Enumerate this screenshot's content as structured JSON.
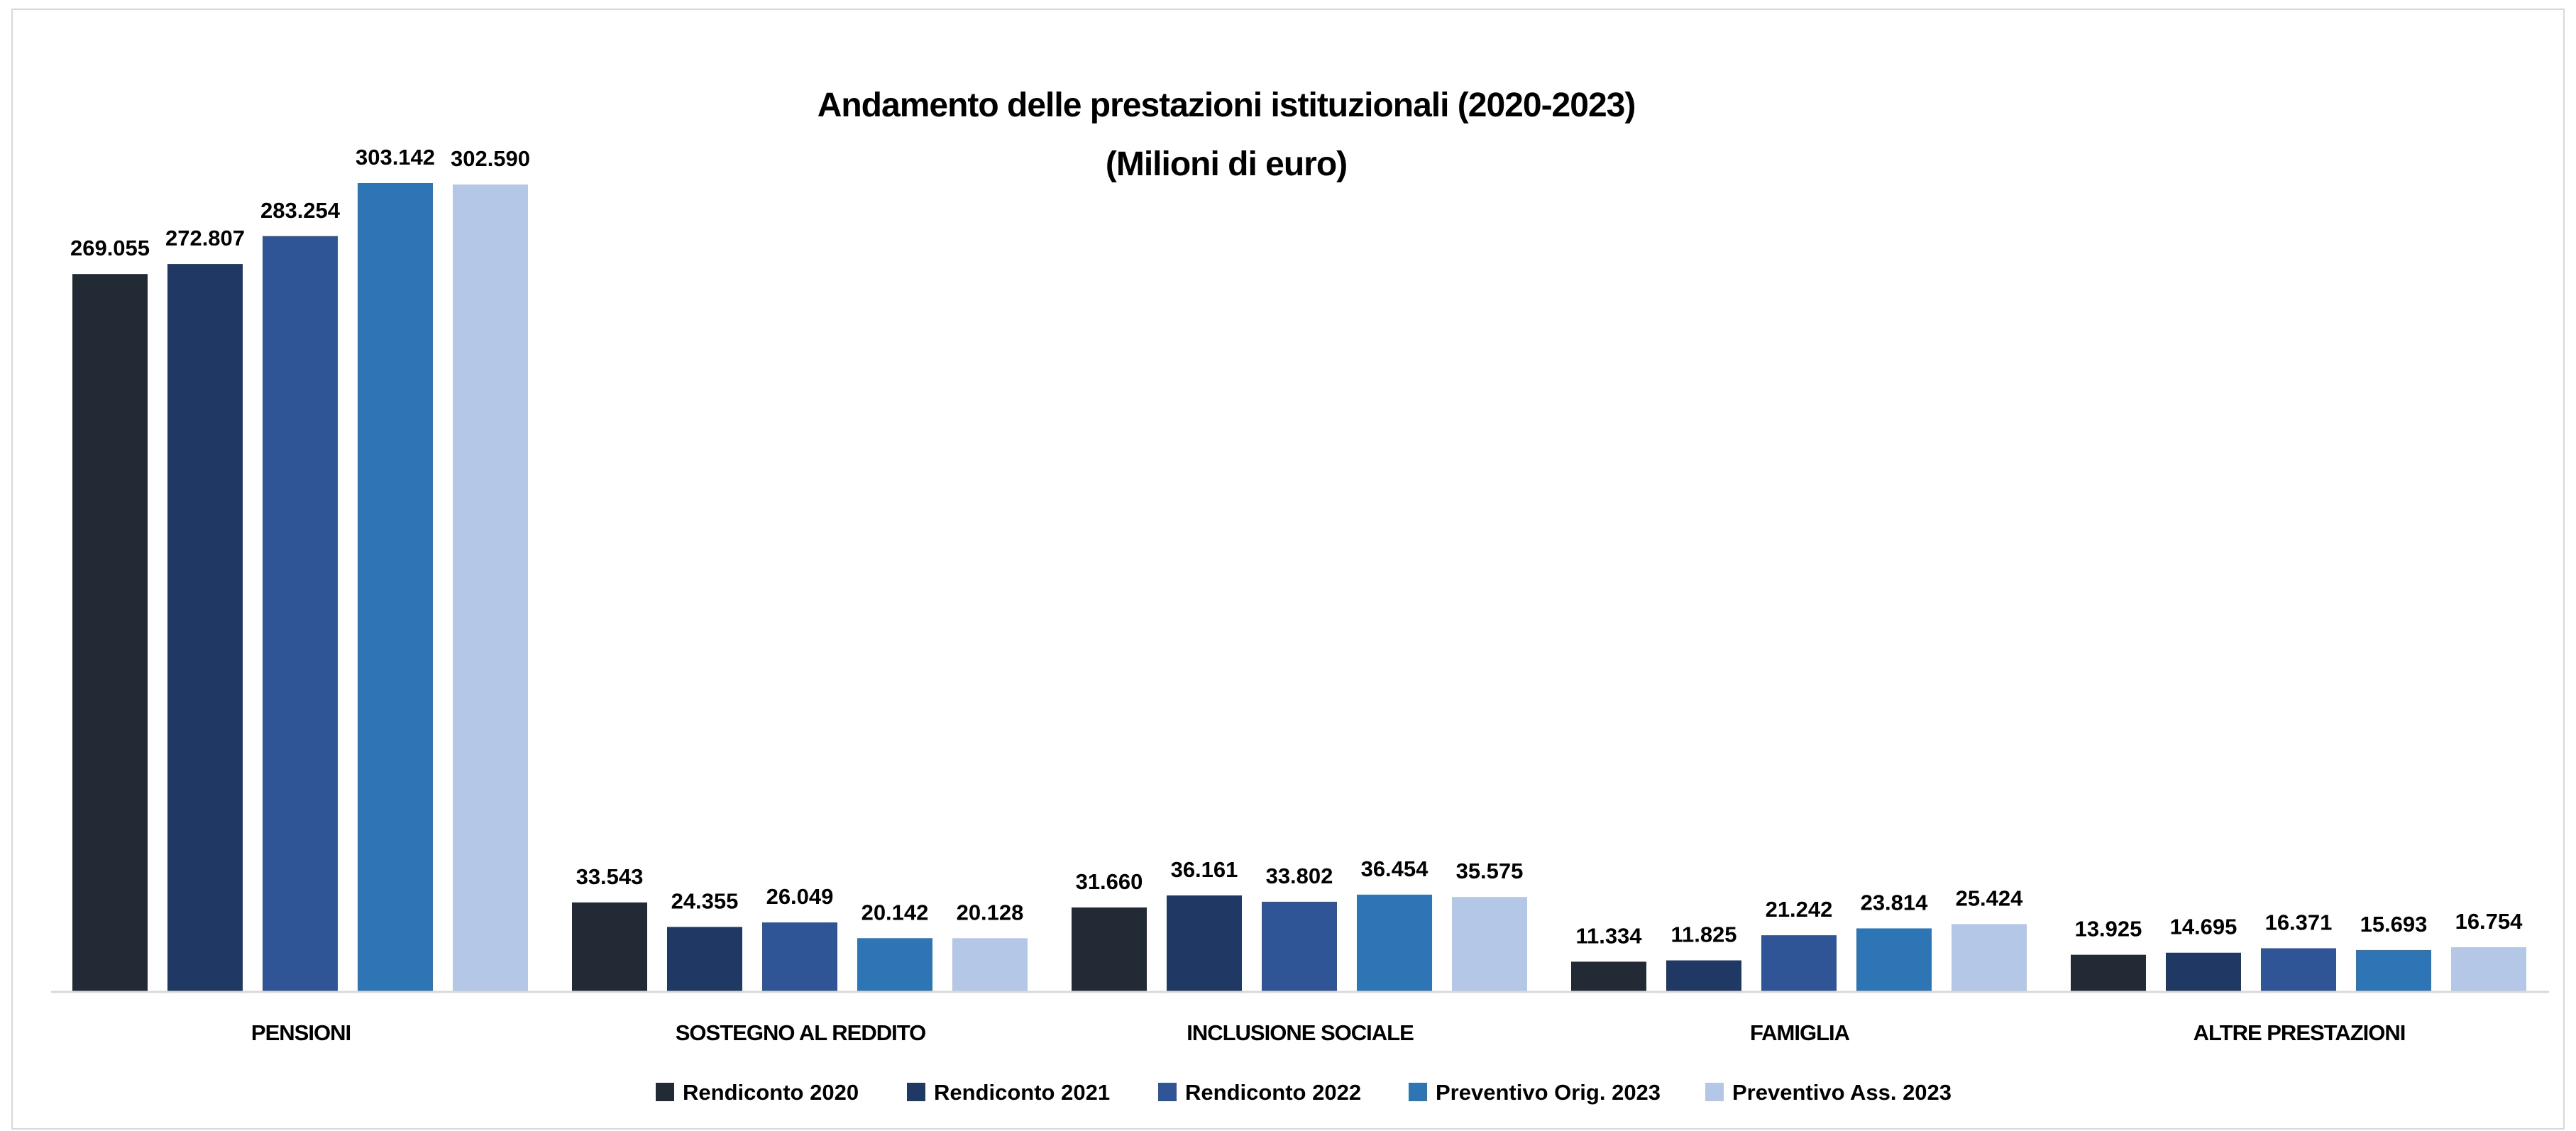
{
  "chart_data": {
    "type": "bar",
    "title": "Andamento delle prestazioni istituzionali (2020-2023)",
    "subtitle": "(Milioni di euro)",
    "categories": [
      "PENSIONI",
      "SOSTEGNO AL REDDITO",
      "INCLUSIONE SOCIALE",
      "FAMIGLIA",
      "ALTRE PRESTAZIONI"
    ],
    "series": [
      {
        "name": "Rendiconto 2020",
        "color": "#222a36",
        "values": [
          269055,
          33543,
          31660,
          11334,
          13925
        ],
        "labels": [
          "269.055",
          "33.543",
          "31.660",
          "11.334",
          "13.925"
        ]
      },
      {
        "name": "Rendiconto 2021",
        "color": "#203864",
        "values": [
          272807,
          24355,
          36161,
          11825,
          14695
        ],
        "labels": [
          "272.807",
          "24.355",
          "36.161",
          "11.825",
          "14.695"
        ]
      },
      {
        "name": "Rendiconto 2022",
        "color": "#2f5597",
        "values": [
          283254,
          26049,
          33802,
          21242,
          16371
        ],
        "labels": [
          "283.254",
          "26.049",
          "33.802",
          "21.242",
          "16.371"
        ]
      },
      {
        "name": "Preventivo Orig. 2023",
        "color": "#2e75b6",
        "values": [
          303142,
          20142,
          36454,
          23814,
          15693
        ],
        "labels": [
          "303.142",
          "20.142",
          "36.454",
          "23.814",
          "15.693"
        ]
      },
      {
        "name": "Preventivo Ass. 2023",
        "color": "#b4c7e7",
        "values": [
          302590,
          20128,
          35575,
          25424,
          16754
        ],
        "labels": [
          "302.590",
          "20.128",
          "35.575",
          "25.424",
          "16.754"
        ]
      }
    ],
    "ylim": [
      0,
      303142
    ],
    "grid": false,
    "legend_position": "bottom"
  }
}
